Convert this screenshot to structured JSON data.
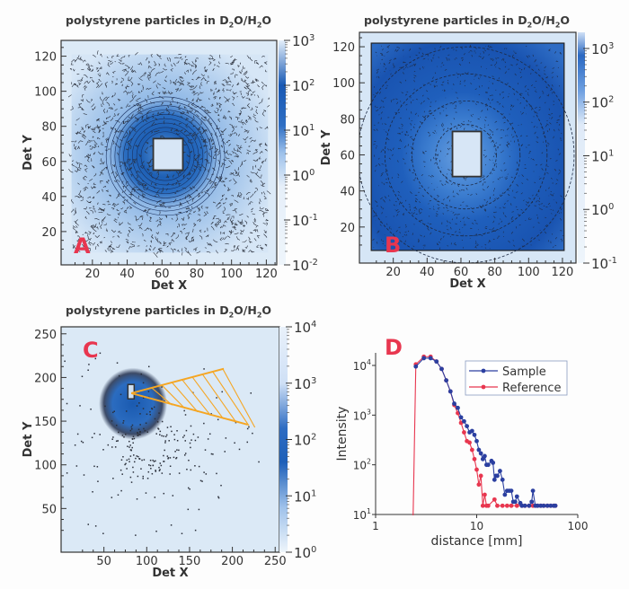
{
  "chart_data": [
    {
      "type": "heatmap",
      "panel_label": "A",
      "title": "polystyrene particles in D2O/H2O",
      "title_parts": [
        "polystyrene particles in D",
        "2",
        "O/H",
        "2",
        "O"
      ],
      "xlabel": "Det X",
      "ylabel": "Det Y",
      "xticks": [
        20,
        40,
        60,
        80,
        100,
        120
      ],
      "yticks": [
        20,
        40,
        60,
        80,
        100,
        120
      ],
      "xlim": [
        2,
        126
      ],
      "ylim": [
        1,
        129
      ],
      "colorbar": {
        "scale": "log",
        "ticks": [
          "10^-2",
          "10^-1",
          "10^0",
          "10^1",
          "10^2",
          "10^3"
        ],
        "range": [
          0.01,
          1000
        ]
      },
      "beamstop": {
        "x": [
          55,
          72
        ],
        "y": [
          55,
          73
        ]
      },
      "pattern": "isotropic ring around center (62,63), dense contours"
    },
    {
      "type": "heatmap",
      "panel_label": "B",
      "title": "polystyrene particles in D2O/H2O",
      "title_parts": [
        "polystyrene particles in D",
        "2",
        "O/H",
        "2",
        "O"
      ],
      "xlabel": "Det X",
      "ylabel": "Det Y",
      "xticks": [
        20,
        40,
        60,
        80,
        100,
        120
      ],
      "yticks": [
        20,
        40,
        60,
        80,
        100,
        120
      ],
      "xlim": [
        0,
        128
      ],
      "ylim": [
        0,
        128
      ],
      "colorbar": {
        "scale": "log",
        "ticks": [
          "10^-1",
          "10^0",
          "10^1",
          "10^2",
          "10^3"
        ],
        "range": [
          0.1,
          1500
        ]
      },
      "beamstop": {
        "x": [
          55,
          72
        ],
        "y": [
          48,
          73
        ]
      },
      "pattern": "saturated detector with concentric rings"
    },
    {
      "type": "heatmap",
      "panel_label": "C",
      "title": "polystyrene particles in D2O/H2O",
      "title_parts": [
        "polystyrene particles in D",
        "2",
        "O/H",
        "2",
        "O"
      ],
      "xlabel": "Det X",
      "ylabel": "Det Y",
      "xticks": [
        50,
        100,
        150,
        200,
        250
      ],
      "yticks": [
        50,
        100,
        150,
        200,
        250
      ],
      "xlim": [
        0,
        255
      ],
      "ylim": [
        0,
        258
      ],
      "colorbar": {
        "scale": "log",
        "ticks": [
          "10^0",
          "10^1",
          "10^2",
          "10^3",
          "10^4"
        ],
        "range": [
          1,
          10000
        ]
      },
      "beam_center": [
        82,
        182
      ],
      "sector": {
        "apex": [
          82,
          182
        ],
        "upper_end": [
          190,
          210
        ],
        "lower_end": [
          218,
          146
        ],
        "color": "#f5a623"
      },
      "pattern": "off-center scattering blob"
    },
    {
      "type": "line",
      "panel_label": "D",
      "xlabel": "distance [mm]",
      "ylabel": "Intensity",
      "xscale": "log",
      "yscale": "log",
      "xlim": [
        1,
        100
      ],
      "ylim": [
        10,
        18000
      ],
      "xticks": [
        "1",
        "10",
        "100"
      ],
      "yticks": [
        "10^1",
        "10^2",
        "10^3",
        "10^4"
      ],
      "legend": "top-right",
      "series": [
        {
          "name": "Sample",
          "color": "#2b3fa0",
          "x": [
            2.5,
            3,
            3.5,
            4,
            4.5,
            5,
            5.5,
            6,
            6.5,
            7,
            7.5,
            8,
            8.5,
            9,
            9.5,
            10,
            10.5,
            11,
            11.5,
            12,
            12.5,
            13,
            14,
            14.5,
            15,
            15.5,
            16,
            17,
            18,
            19,
            20,
            21,
            22,
            23,
            24,
            25,
            27,
            28,
            30,
            33,
            35,
            36,
            38,
            40,
            43,
            46,
            50,
            54,
            58,
            60
          ],
          "y": [
            9500,
            14000,
            14000,
            12000,
            8500,
            5000,
            3000,
            1700,
            1400,
            900,
            750,
            600,
            450,
            480,
            400,
            300,
            200,
            170,
            130,
            150,
            100,
            100,
            120,
            110,
            50,
            60,
            60,
            75,
            50,
            25,
            30,
            30,
            30,
            18,
            18,
            23,
            17,
            15,
            15,
            15,
            18,
            30,
            15,
            15,
            15,
            15,
            15,
            15,
            15,
            15
          ]
        },
        {
          "name": "Reference",
          "color": "#e8364f",
          "x": [
            2.35,
            2.5,
            3,
            3.5,
            4,
            4.5,
            5,
            5.5,
            6,
            6.5,
            7,
            7.5,
            8,
            8.5,
            9,
            9.5,
            10,
            10.5,
            11,
            11.5,
            12,
            12.5,
            13,
            15,
            16,
            18,
            20,
            22,
            25,
            28,
            30,
            33,
            36,
            40,
            43,
            46,
            50,
            54,
            58,
            60
          ],
          "y": [
            10,
            10500,
            15000,
            15000,
            12000,
            8500,
            5000,
            3000,
            1600,
            1100,
            700,
            450,
            300,
            280,
            200,
            130,
            80,
            40,
            60,
            15,
            25,
            15,
            15,
            20,
            15,
            15,
            15,
            15,
            15,
            15,
            15,
            15,
            15,
            15,
            15,
            15,
            15,
            15,
            15,
            15
          ]
        }
      ]
    }
  ]
}
